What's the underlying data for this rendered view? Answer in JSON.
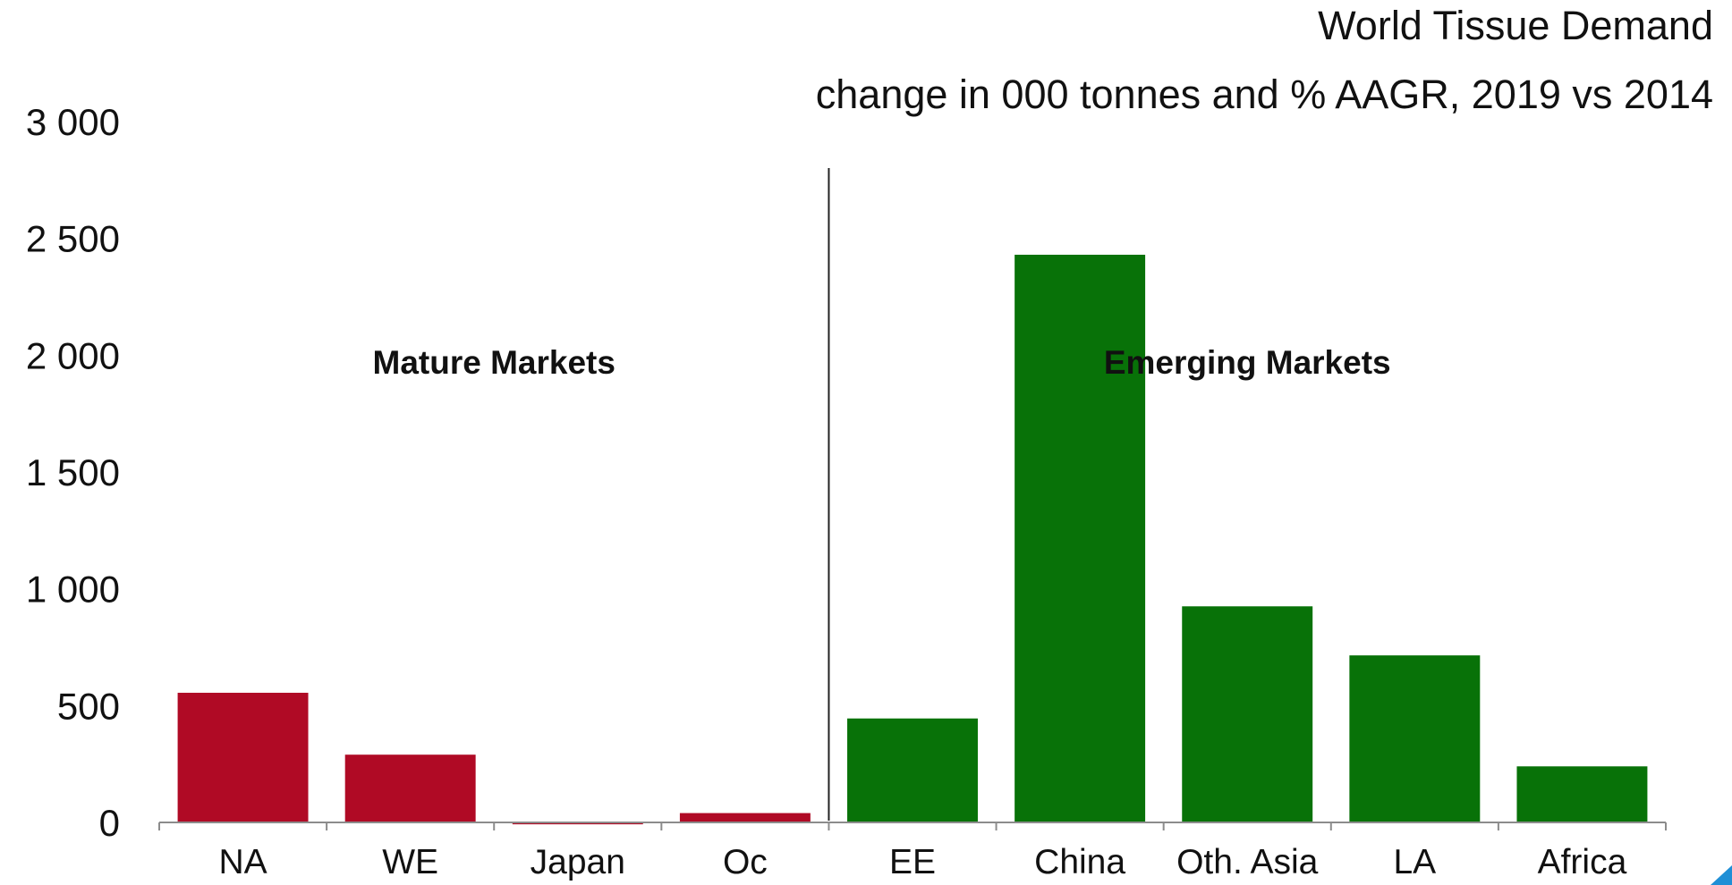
{
  "chart_data": {
    "type": "bar",
    "title": "World Tissue Demand",
    "subtitle": "change in 000 tonnes and % AAGR, 2019 vs 2014",
    "categories": [
      "NA",
      "WE",
      "Japan",
      "Oc",
      "EE",
      "China",
      "Oth. Asia",
      "LA",
      "Africa"
    ],
    "values": [
      555,
      290,
      -8,
      40,
      445,
      2430,
      925,
      715,
      240
    ],
    "groups": [
      {
        "label": "Mature Markets",
        "color": "#b00a25",
        "categories": [
          "NA",
          "WE",
          "Japan",
          "Oc"
        ]
      },
      {
        "label": "Emerging Markets",
        "color": "#087208",
        "categories": [
          "EE",
          "China",
          "Oth. Asia",
          "LA",
          "Africa"
        ]
      }
    ],
    "ylim": [
      0,
      3000
    ],
    "yticks": [
      0,
      500,
      1000,
      1500,
      2000,
      2500,
      3000
    ],
    "ytick_labels": [
      "0",
      "500",
      "1 000",
      "1 500",
      "2 000",
      "2 500",
      "3 000"
    ],
    "grid": false,
    "xlabel": "",
    "ylabel": ""
  }
}
